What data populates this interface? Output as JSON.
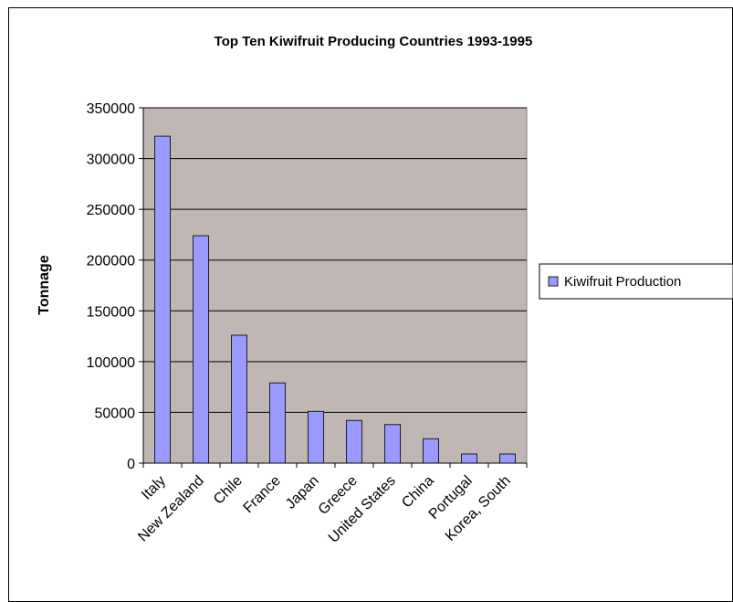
{
  "chart_data": {
    "type": "bar",
    "title": "Top Ten Kiwifruit Producing Countries 1993-1995",
    "ylabel": "Tonnage",
    "xlabel": "",
    "categories": [
      "Italy",
      "New Zealand",
      "Chile",
      "France",
      "Japan",
      "Greece",
      "United States",
      "China",
      "Portugal",
      "Korea, South"
    ],
    "series": [
      {
        "name": "Kiwifruit Production",
        "values": [
          322000,
          224000,
          126000,
          79000,
          51000,
          42000,
          38000,
          24000,
          9000,
          9000
        ]
      }
    ],
    "ylim": [
      0,
      350000
    ],
    "y_ticks": [
      0,
      50000,
      100000,
      150000,
      200000,
      250000,
      300000,
      350000
    ],
    "y_tick_labels": [
      "0",
      "50000",
      "100000",
      "150000",
      "200000",
      "250000",
      "300000",
      "350000"
    ],
    "grid": true,
    "legend_position": "right",
    "colors": {
      "plot_background": "#c0b6b4",
      "bar_fill": "#9999ff",
      "bar_stroke": "#1f1f1f",
      "gridline": "#000000"
    }
  }
}
